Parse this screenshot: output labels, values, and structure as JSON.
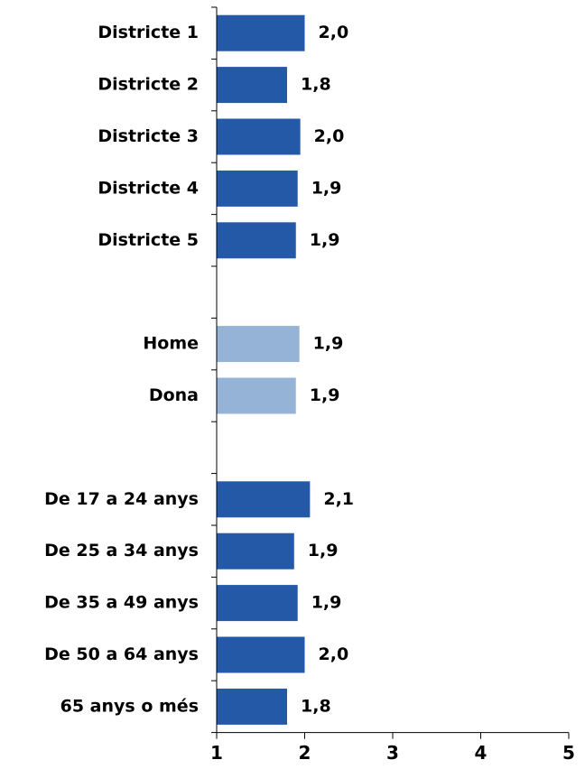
{
  "chart_data": {
    "type": "bar",
    "orientation": "horizontal",
    "title": "",
    "xlabel": "",
    "ylabel": "",
    "xlim": [
      1,
      5
    ],
    "x_ticks": [
      "1",
      "2",
      "3",
      "4",
      "5"
    ],
    "grid": false,
    "legend": "none",
    "categories": [
      "Districte 1",
      "Districte 2",
      "Districte 3",
      "Districte 4",
      "Districte 5",
      "",
      "Home",
      "Dona",
      "",
      "De 17 a 24 anys",
      "De 25 a 34 anys",
      "De 35 a 49 anys",
      "De 50 a 64 anys",
      "65 anys o més"
    ],
    "values": [
      2.0,
      1.8,
      1.95,
      1.92,
      1.9,
      null,
      1.94,
      1.9,
      null,
      2.06,
      1.88,
      1.92,
      2.0,
      1.8
    ],
    "value_labels": [
      "2,0",
      "1,8",
      "2,0",
      "1,9",
      "1,9",
      "",
      "1,9",
      "1,9",
      "",
      "2,1",
      "1,9",
      "1,9",
      "2,0",
      "1,8"
    ],
    "bar_colors": [
      "#2359A6",
      "#2359A6",
      "#2359A6",
      "#2359A6",
      "#2359A6",
      "",
      "#95B3D7",
      "#95B3D7",
      "",
      "#2359A6",
      "#2359A6",
      "#2359A6",
      "#2359A6",
      "#2359A6"
    ]
  }
}
